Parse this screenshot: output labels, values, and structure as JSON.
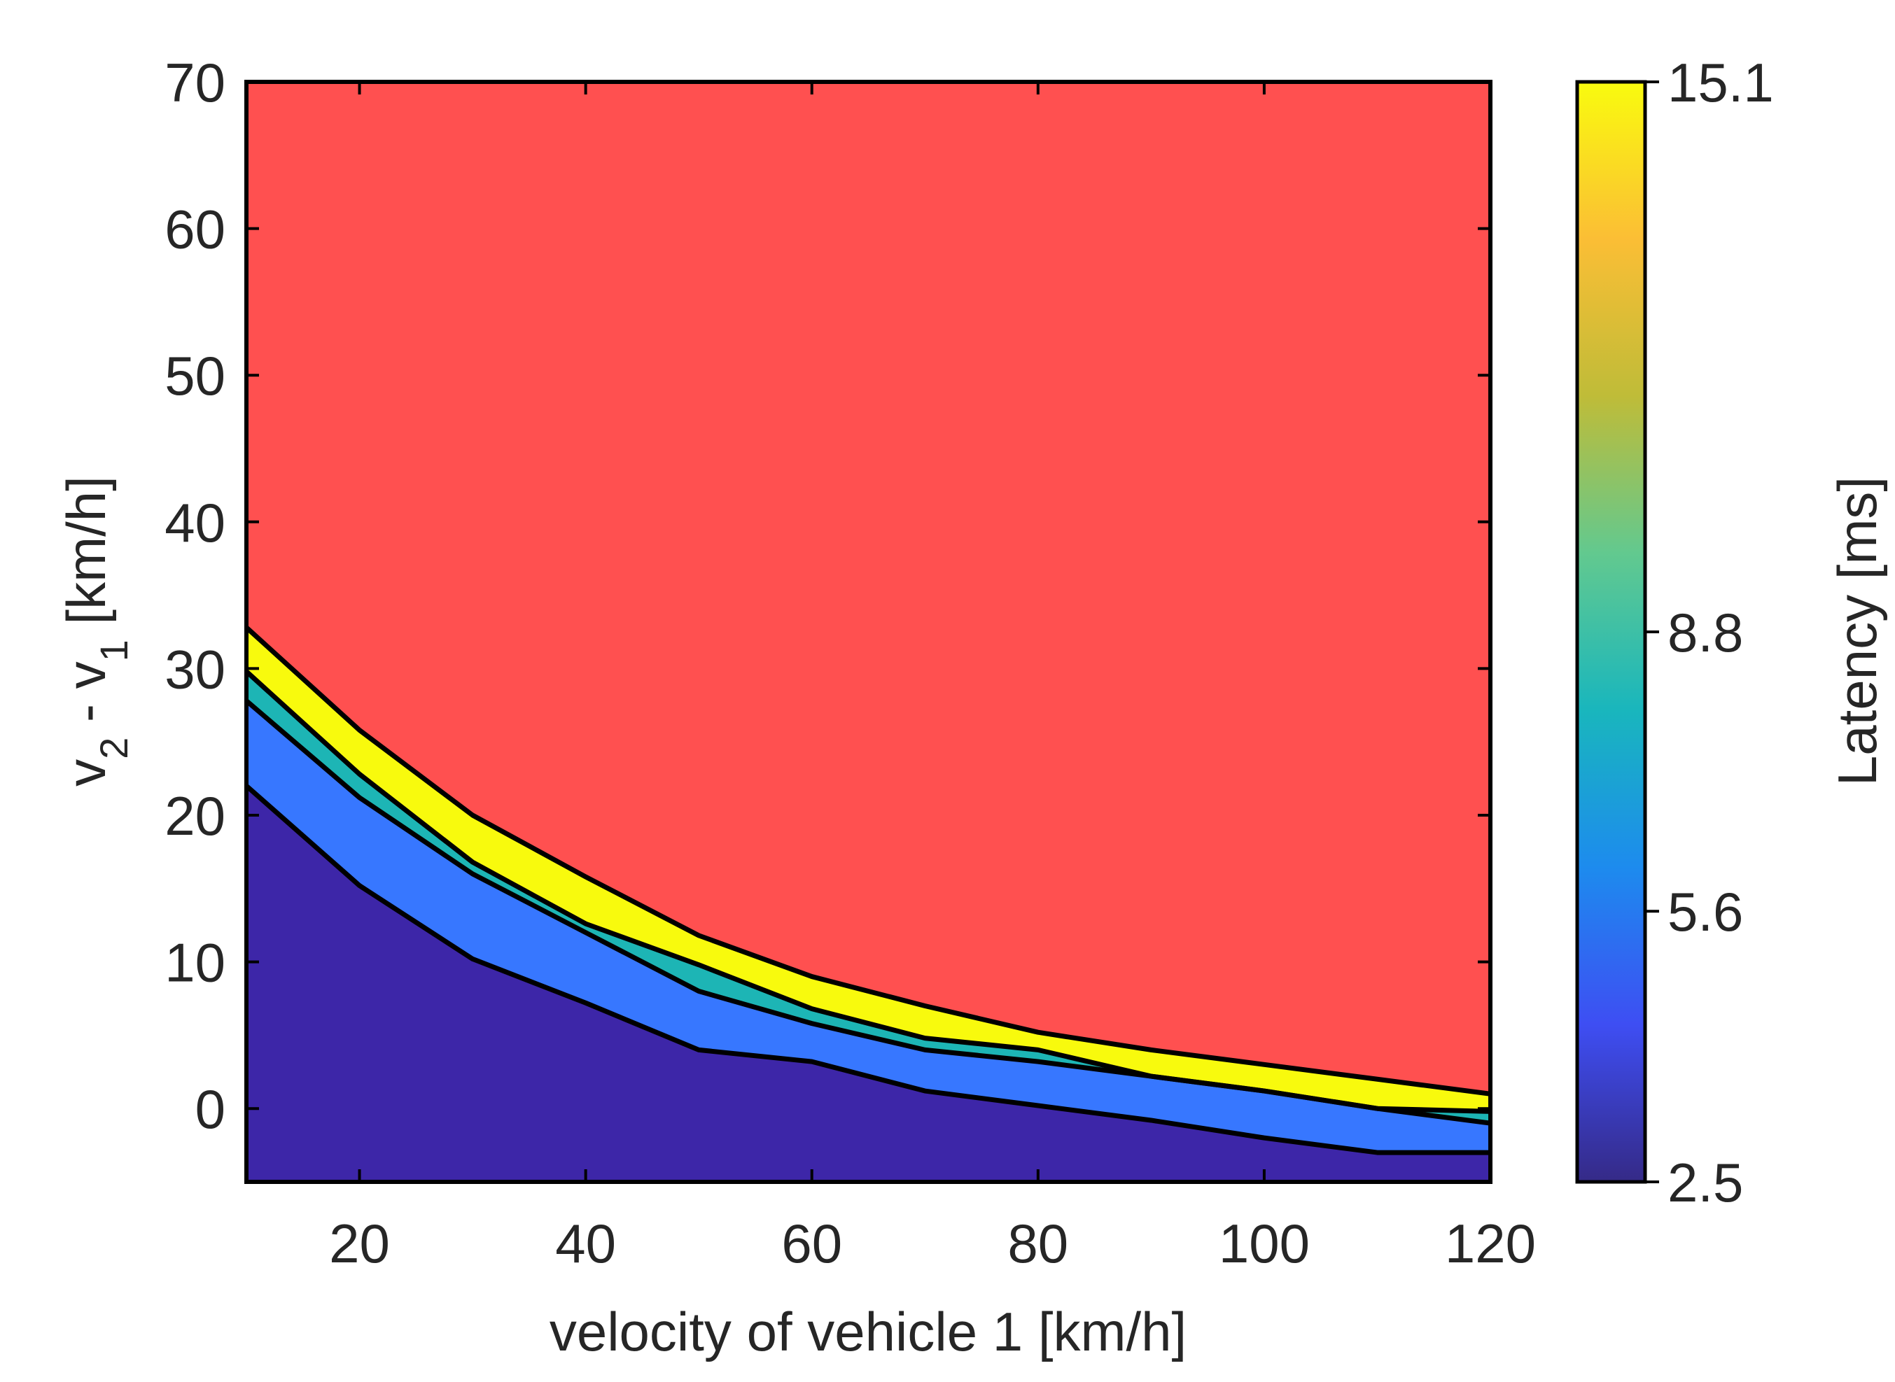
{
  "chart_data": {
    "type": "area",
    "title": "",
    "xlabel": "velocity of vehicle 1 [km/h]",
    "ylabel": {
      "prefix": "v",
      "sub1": "2",
      "middle": " - v",
      "sub2": "1",
      "suffix": " [km/h]"
    },
    "xlim": [
      10,
      120
    ],
    "ylim": [
      -5,
      70
    ],
    "xticks": [
      20,
      40,
      60,
      80,
      100,
      120
    ],
    "yticks": [
      0,
      10,
      20,
      30,
      40,
      50,
      60,
      70
    ],
    "grid": false,
    "x": [
      10,
      20,
      30,
      40,
      50,
      60,
      70,
      80,
      90,
      100,
      110,
      120
    ],
    "boundaries": [
      {
        "fill": "#3d26a8",
        "values": [
          22.0,
          15.2,
          10.2,
          7.2,
          4.0,
          3.2,
          1.2,
          0.2,
          -0.8,
          -2.0,
          -3.0,
          -3.0
        ]
      },
      {
        "fill": "#3777ff",
        "values": [
          27.8,
          21.2,
          16.0,
          12.0,
          8.0,
          5.8,
          4.0,
          3.2,
          2.2,
          1.2,
          0.0,
          -1.0
        ]
      },
      {
        "fill": "#1db5b5",
        "values": [
          29.8,
          22.8,
          16.8,
          12.6,
          9.8,
          6.8,
          4.8,
          4.0,
          2.2,
          1.2,
          0.0,
          -0.2
        ]
      },
      {
        "fill": "#f8fa0d",
        "values": [
          32.8,
          25.8,
          20.0,
          15.8,
          11.8,
          9.0,
          7.0,
          5.2,
          4.0,
          3.0,
          2.0,
          1.0
        ]
      }
    ],
    "top_fill": "#ff5050",
    "colorbar": {
      "label": "Latency [ms]",
      "ticks": [
        "2.5",
        "5.6",
        "8.8",
        "15.1"
      ],
      "tick_values": [
        2.5,
        5.6,
        8.8,
        15.1
      ],
      "range": [
        2.5,
        15.1
      ],
      "colormap": [
        "#352a87",
        "#3e4ef3",
        "#1d8bee",
        "#19b6bd",
        "#62c98f",
        "#bfbc38",
        "#fbbe35",
        "#f9fb0e"
      ]
    }
  }
}
